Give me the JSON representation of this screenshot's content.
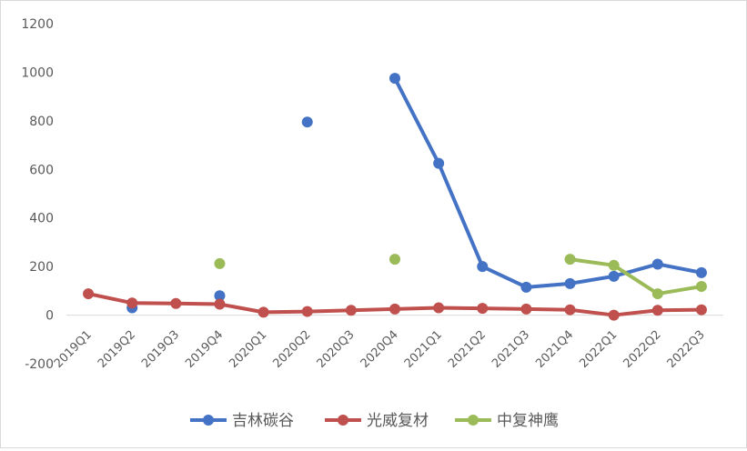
{
  "chart_data": {
    "type": "line",
    "categories": [
      "2019Q1",
      "2019Q2",
      "2019Q3",
      "2019Q4",
      "2020Q1",
      "2020Q2",
      "2020Q3",
      "2020Q4",
      "2021Q1",
      "2021Q2",
      "2021Q3",
      "2021Q4",
      "2022Q1",
      "2022Q2",
      "2022Q3"
    ],
    "ylim": [
      -200,
      1200
    ],
    "yticks": [
      -200,
      0,
      200,
      400,
      600,
      800,
      1000,
      1200
    ],
    "grid": false,
    "legend_position": "bottom",
    "series": [
      {
        "name": "吉林碳谷",
        "color": "#4472C4",
        "values": [
          null,
          30,
          null,
          80,
          null,
          795,
          null,
          975,
          625,
          200,
          115,
          130,
          160,
          210,
          175
        ]
      },
      {
        "name": "光威复材",
        "color": "#C0504D",
        "values": [
          88,
          50,
          48,
          45,
          12,
          15,
          20,
          25,
          30,
          28,
          25,
          22,
          0,
          20,
          22
        ]
      },
      {
        "name": "中复神鹰",
        "color": "#9BBB59",
        "values": [
          null,
          null,
          null,
          212,
          null,
          null,
          null,
          230,
          null,
          null,
          null,
          230,
          205,
          88,
          118
        ]
      }
    ]
  }
}
